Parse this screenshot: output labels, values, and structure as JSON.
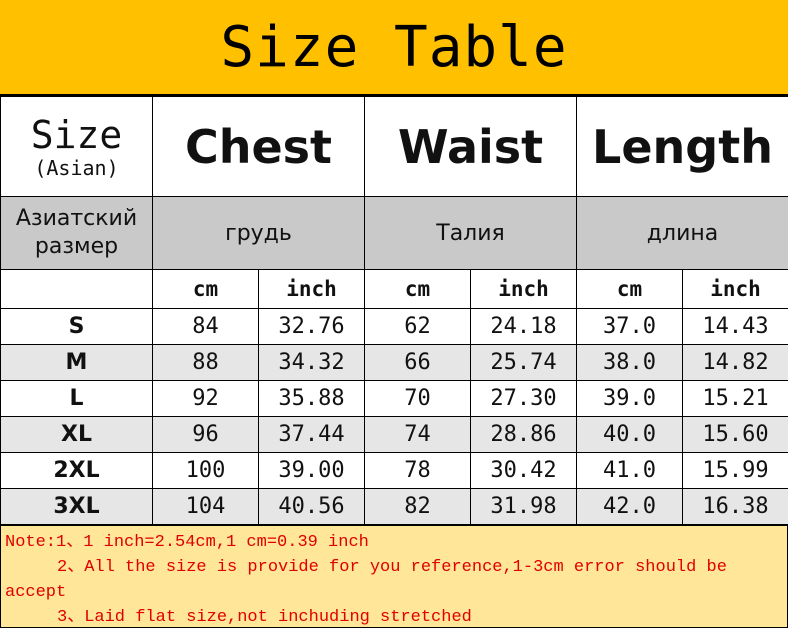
{
  "title": "Size Table",
  "header": {
    "size": "Size",
    "size_sub": "(Asian)",
    "chest": "Chest",
    "waist": "Waist",
    "length": "Length"
  },
  "russian": {
    "size": "Азиатский размер",
    "chest": "грудь",
    "waist": "Талия",
    "length": "длина"
  },
  "units": [
    "cm",
    "inch",
    "cm",
    "inch",
    "cm",
    "inch"
  ],
  "rows": [
    {
      "size": "S",
      "vals": [
        "84",
        "32.76",
        "62",
        "24.18",
        "37.0",
        "14.43"
      ]
    },
    {
      "size": "M",
      "vals": [
        "88",
        "34.32",
        "66",
        "25.74",
        "38.0",
        "14.82"
      ]
    },
    {
      "size": "L",
      "vals": [
        "92",
        "35.88",
        "70",
        "27.30",
        "39.0",
        "15.21"
      ]
    },
    {
      "size": "XL",
      "vals": [
        "96",
        "37.44",
        "74",
        "28.86",
        "40.0",
        "15.60"
      ]
    },
    {
      "size": "2XL",
      "vals": [
        "100",
        "39.00",
        "78",
        "30.42",
        "41.0",
        "15.99"
      ]
    },
    {
      "size": "3XL",
      "vals": [
        "104",
        "40.56",
        "82",
        "31.98",
        "42.0",
        "16.38"
      ]
    }
  ],
  "notes": [
    "Note:1、1 inch=2.54cm,1 cm=0.39 inch",
    "2、All the size is provide for you reference,1-3cm error should be accept",
    "3、Laid flat size,not inchuding stretched"
  ],
  "colors": {
    "title_bg": "#FFC000",
    "notes_bg": "#FFE699",
    "notes_text": "#E00000",
    "russian_bg": "#C9C9C9"
  }
}
